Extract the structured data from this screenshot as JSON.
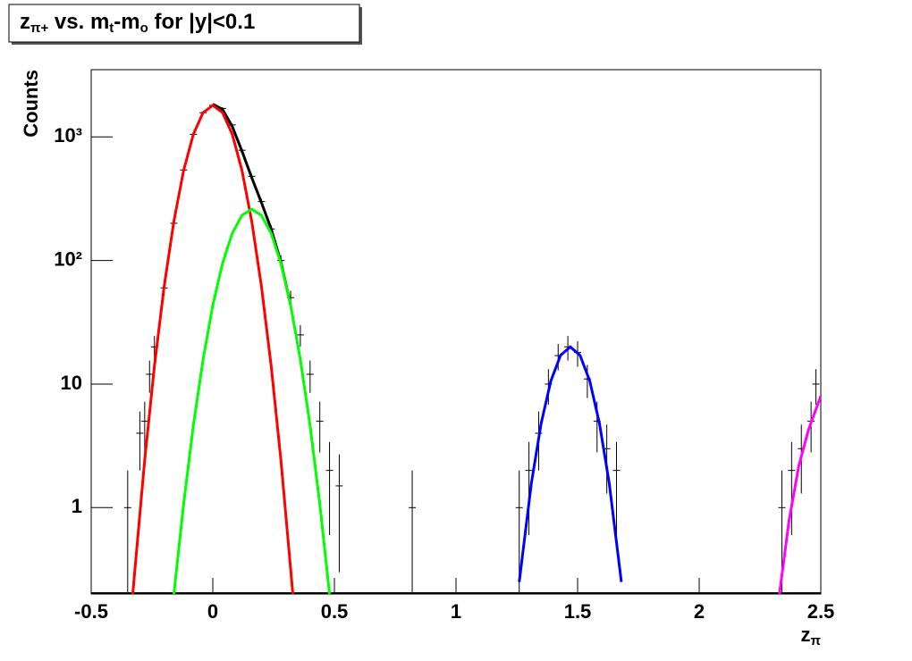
{
  "chart_data": {
    "type": "line",
    "title": [
      "z",
      "π+",
      " vs. m",
      "t",
      "-m",
      "o",
      " for |y|<0.1"
    ],
    "ylabel": "Counts",
    "xlabel": [
      "z",
      "π"
    ],
    "xlim": [
      -0.5,
      2.5
    ],
    "ylim": [
      0.2,
      3500
    ],
    "log_y": true,
    "xticks": [
      -0.5,
      0,
      0.5,
      1,
      1.5,
      2,
      2.5
    ],
    "yticks": [
      1,
      10,
      {
        "value": 100,
        "label": "10²"
      },
      {
        "value": 1000,
        "label": "10³"
      }
    ],
    "series": [
      {
        "color": "#000000",
        "x": [
          0,
          0.04,
          0.08,
          0.12,
          0.16,
          0.2,
          0.24,
          0.28,
          0.32
        ],
        "values": [
          1843,
          1668,
          1215,
          767,
          468,
          294,
          180,
          97.3,
          43.7
        ]
      },
      {
        "color": "#ff0000",
        "x": [
          -0.33,
          -0.32,
          -0.28,
          -0.24,
          -0.2,
          -0.16,
          -0.12,
          -0.08,
          -0.04,
          0,
          0.04,
          0.08,
          0.12,
          0.16,
          0.2,
          0.24,
          0.28,
          0.32,
          0.33
        ],
        "values": [
          0.19,
          0.32,
          2.43,
          14,
          61.8,
          208,
          535,
          1049,
          1573,
          1800,
          1573,
          1049,
          535,
          208,
          61.8,
          14,
          2.43,
          0.32,
          0.19
        ]
      },
      {
        "color": "#00ff00",
        "x": [
          -0.16,
          -0.12,
          -0.08,
          -0.04,
          0,
          0.04,
          0.08,
          0.12,
          0.16,
          0.2,
          0.24,
          0.28,
          0.32,
          0.36,
          0.4,
          0.44,
          0.48
        ],
        "values": [
          0.2,
          1.07,
          4.62,
          15.8,
          43.4,
          94.9,
          166,
          232,
          260,
          232,
          166,
          94.9,
          43.4,
          15.8,
          4.62,
          1.07,
          0.2
        ]
      },
      {
        "color": "#0000ff",
        "x": [
          1.26,
          1.31,
          1.35,
          1.39,
          1.43,
          1.47,
          1.51,
          1.55,
          1.59,
          1.63,
          1.68
        ],
        "values": [
          0.25,
          1.58,
          4.79,
          10.6,
          17.1,
          20,
          17.1,
          10.6,
          4.79,
          1.58,
          0.25
        ]
      },
      {
        "color": "#ff00ff",
        "x": [
          2.33,
          2.37,
          2.41,
          2.45,
          2.5
        ],
        "values": [
          0.2,
          0.8,
          2.2,
          4.3,
          8
        ]
      }
    ],
    "points": {
      "color": "#000000",
      "x": [
        -0.35,
        -0.3,
        -0.28,
        -0.26,
        -0.24,
        -0.2,
        -0.16,
        -0.12,
        -0.08,
        -0.04,
        0,
        0.04,
        0.08,
        0.12,
        0.16,
        0.2,
        0.24,
        0.28,
        0.32,
        0.36,
        0.4,
        0.44,
        0.48,
        0.52,
        0.82,
        1.26,
        1.3,
        1.34,
        1.38,
        1.42,
        1.46,
        1.5,
        1.54,
        1.58,
        1.62,
        1.66,
        2.34,
        2.38,
        2.42,
        2.46,
        2.48
      ],
      "values": [
        1,
        4,
        5,
        12,
        20,
        60,
        200,
        540,
        1050,
        1570,
        1800,
        1700,
        1250,
        780,
        480,
        300,
        180,
        100,
        50,
        25,
        12,
        5,
        2,
        1.5,
        1,
        1,
        2,
        4,
        10,
        17,
        20,
        18,
        11,
        5,
        3,
        2,
        1,
        2,
        3,
        5,
        10
      ],
      "errors": [
        1,
        2,
        2.2,
        3.5,
        4.5,
        8,
        14,
        23,
        32,
        40,
        42,
        41,
        35,
        28,
        22,
        17,
        13,
        10,
        7,
        5,
        3.5,
        2.2,
        1.4,
        1.2,
        1,
        1,
        1.4,
        2,
        3.2,
        4.1,
        4.5,
        4.2,
        3.3,
        2.2,
        1.7,
        1.4,
        1,
        1.4,
        1.7,
        2.2,
        3.2
      ]
    }
  }
}
